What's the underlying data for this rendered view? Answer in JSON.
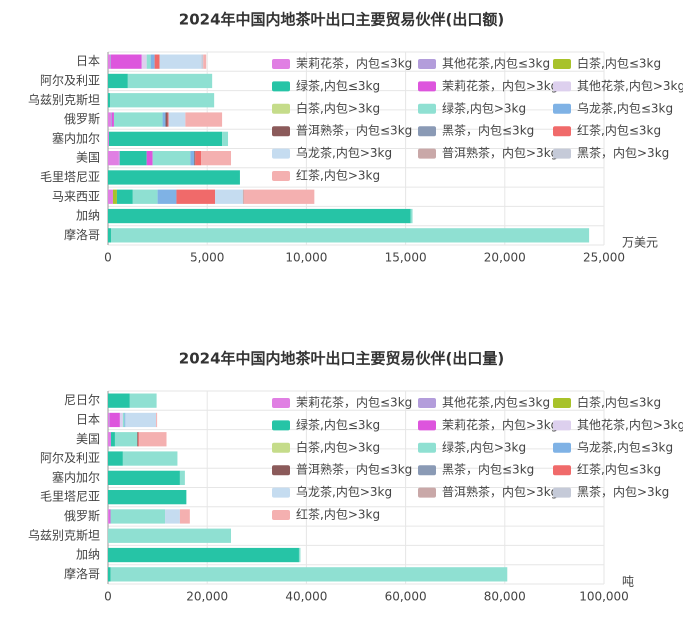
{
  "chart_data": [
    {
      "type": "bar",
      "orientation": "horizontal",
      "stacked": true,
      "title": "2024年中国内地茶叶出口主要贸易伙伴(出口额)",
      "x_label": "万美元",
      "categories": [
        "日本",
        "阿尔及利亚",
        "乌兹别克斯坦",
        "俄罗斯",
        "塞内加尔",
        "美国",
        "毛里塔尼亚",
        "马来西亚",
        "加纳",
        "摩洛哥"
      ],
      "xlim": [
        0,
        25000
      ],
      "xticks": [
        0,
        {
          "value": 5000,
          "label": "5,000"
        },
        {
          "value": 10000,
          "label": "10,000"
        },
        {
          "value": 15000,
          "label": "15,000"
        },
        {
          "value": 20000,
          "label": "20,000"
        },
        {
          "value": 25000,
          "label": "25,000"
        }
      ],
      "grid": true,
      "series": [
        {
          "name": "茉莉花茶，内包≤3kg",
          "color": "#e07fe3",
          "values": [
            100,
            0,
            0,
            150,
            50,
            550,
            0,
            250,
            0,
            0
          ]
        },
        {
          "name": "其他花茶,内包≤3kg",
          "color": "#b39ddb",
          "values": [
            50,
            0,
            0,
            50,
            0,
            50,
            0,
            0,
            0,
            0
          ]
        },
        {
          "name": "白茶,内包≤3kg",
          "color": "#a8c22a",
          "values": [
            0,
            0,
            0,
            0,
            0,
            0,
            0,
            200,
            0,
            0
          ]
        },
        {
          "name": "绿茶,内包≤3kg",
          "color": "#26c4a6",
          "values": [
            0,
            1000,
            100,
            0,
            5700,
            1350,
            6650,
            800,
            15250,
            150
          ]
        },
        {
          "name": "茉莉花茶，内包>3kg",
          "color": "#dd55dd",
          "values": [
            1550,
            0,
            0,
            100,
            0,
            300,
            0,
            0,
            0,
            0
          ]
        },
        {
          "name": "其他花茶,内包>3kg",
          "color": "#ddd0ee",
          "values": [
            250,
            0,
            0,
            0,
            0,
            0,
            0,
            0,
            0,
            0
          ]
        },
        {
          "name": "白茶,内包>3kg",
          "color": "#c5dc8a",
          "values": [
            0,
            0,
            0,
            0,
            0,
            0,
            0,
            0,
            0,
            0
          ]
        },
        {
          "name": "绿茶,内包>3kg",
          "color": "#8fe0d2",
          "values": [
            200,
            4250,
            5250,
            2450,
            300,
            1900,
            0,
            1250,
            100,
            24100
          ]
        },
        {
          "name": "乌龙茶,内包≤3kg",
          "color": "#7fb2e5",
          "values": [
            200,
            0,
            0,
            150,
            0,
            200,
            0,
            950,
            0,
            0
          ]
        },
        {
          "name": "普洱熟茶，内包≤3kg",
          "color": "#8b5a5a",
          "values": [
            0,
            0,
            0,
            100,
            0,
            50,
            0,
            0,
            0,
            0
          ]
        },
        {
          "name": "黑茶，内包≤3kg",
          "color": "#8a9ab5",
          "values": [
            0,
            0,
            0,
            0,
            0,
            0,
            0,
            0,
            0,
            0
          ]
        },
        {
          "name": "红茶,内包≤3kg",
          "color": "#f06a6a",
          "values": [
            250,
            0,
            0,
            50,
            0,
            300,
            0,
            1950,
            0,
            0
          ]
        },
        {
          "name": "乌龙茶,内包>3kg",
          "color": "#c5dcf0",
          "values": [
            2100,
            0,
            0,
            850,
            0,
            0,
            0,
            1400,
            0,
            0
          ]
        },
        {
          "name": "普洱熟茶，内包>3kg",
          "color": "#c9a8a8",
          "values": [
            0,
            0,
            0,
            0,
            0,
            0,
            0,
            50,
            0,
            0
          ]
        },
        {
          "name": "黑茶，内包>3kg",
          "color": "#c5cad8",
          "values": [
            100,
            0,
            0,
            0,
            0,
            0,
            0,
            0,
            0,
            0
          ]
        },
        {
          "name": "红茶,内包>3kg",
          "color": "#f4b0b0",
          "values": [
            150,
            0,
            0,
            1850,
            0,
            1500,
            0,
            3550,
            0,
            0
          ]
        }
      ]
    },
    {
      "type": "bar",
      "orientation": "horizontal",
      "stacked": true,
      "title": "2024年中国内地茶叶出口主要贸易伙伴(出口量)",
      "x_label": "吨",
      "categories": [
        "尼日尔",
        "日本",
        "美国",
        "阿尔及利亚",
        "塞内加尔",
        "毛里塔尼亚",
        "俄罗斯",
        "乌兹别克斯坦",
        "加纳",
        "摩洛哥"
      ],
      "xlim": [
        0,
        100000
      ],
      "xticks": [
        0,
        {
          "value": 20000,
          "label": "20,000"
        },
        {
          "value": 40000,
          "label": "40,000"
        },
        {
          "value": 60000,
          "label": "60,000"
        },
        {
          "value": 80000,
          "label": "80,000"
        },
        {
          "value": 100000,
          "label": "100,000"
        }
      ],
      "grid": true,
      "series": [
        {
          "name": "茉莉花茶，内包≤3kg",
          "color": "#e07fe3",
          "values": [
            0,
            300,
            600,
            0,
            0,
            0,
            300,
            0,
            0,
            0
          ]
        },
        {
          "name": "其他花茶,内包≤3kg",
          "color": "#b39ddb",
          "values": [
            0,
            100,
            0,
            0,
            0,
            0,
            0,
            0,
            0,
            0
          ]
        },
        {
          "name": "白茶,内包≤3kg",
          "color": "#a8c22a",
          "values": [
            0,
            0,
            0,
            0,
            0,
            0,
            0,
            0,
            0,
            0
          ]
        },
        {
          "name": "绿茶,内包≤3kg",
          "color": "#26c4a6",
          "values": [
            4400,
            0,
            800,
            3000,
            14500,
            15800,
            0,
            0,
            38500,
            500
          ]
        },
        {
          "name": "茉莉花茶，内包>3kg",
          "color": "#dd55dd",
          "values": [
            0,
            2000,
            0,
            0,
            0,
            0,
            200,
            0,
            0,
            0
          ]
        },
        {
          "name": "其他花茶,内包>3kg",
          "color": "#ddd0ee",
          "values": [
            0,
            600,
            0,
            0,
            0,
            0,
            0,
            0,
            0,
            0
          ]
        },
        {
          "name": "白茶,内包>3kg",
          "color": "#c5dc8a",
          "values": [
            0,
            0,
            0,
            0,
            0,
            0,
            0,
            0,
            0,
            0
          ]
        },
        {
          "name": "绿茶,内包>3kg",
          "color": "#8fe0d2",
          "values": [
            5400,
            300,
            4500,
            11000,
            1000,
            0,
            11000,
            24800,
            300,
            80000
          ]
        },
        {
          "name": "乌龙茶,内包≤3kg",
          "color": "#7fb2e5",
          "values": [
            0,
            200,
            0,
            0,
            0,
            0,
            0,
            0,
            0,
            0
          ]
        },
        {
          "name": "普洱熟茶，内包≤3kg",
          "color": "#8b5a5a",
          "values": [
            0,
            0,
            200,
            0,
            0,
            0,
            0,
            0,
            0,
            0
          ]
        },
        {
          "name": "黑茶，内包≤3kg",
          "color": "#8a9ab5",
          "values": [
            0,
            0,
            0,
            0,
            0,
            0,
            0,
            0,
            0,
            0
          ]
        },
        {
          "name": "红茶,内包≤3kg",
          "color": "#f06a6a",
          "values": [
            0,
            0,
            200,
            0,
            0,
            0,
            0,
            0,
            0,
            0
          ]
        },
        {
          "name": "乌龙茶,内包>3kg",
          "color": "#c5dcf0",
          "values": [
            0,
            6200,
            0,
            0,
            0,
            0,
            3000,
            0,
            0,
            0
          ]
        },
        {
          "name": "普洱熟茶，内包>3kg",
          "color": "#c9a8a8",
          "values": [
            0,
            0,
            0,
            0,
            0,
            0,
            0,
            0,
            0,
            0
          ]
        },
        {
          "name": "黑茶，内包>3kg",
          "color": "#c5cad8",
          "values": [
            0,
            0,
            0,
            0,
            0,
            0,
            0,
            0,
            0,
            0
          ]
        },
        {
          "name": "红茶,内包>3kg",
          "color": "#f4b0b0",
          "values": [
            0,
            200,
            5500,
            0,
            0,
            0,
            2000,
            0,
            0,
            0
          ]
        }
      ]
    }
  ]
}
